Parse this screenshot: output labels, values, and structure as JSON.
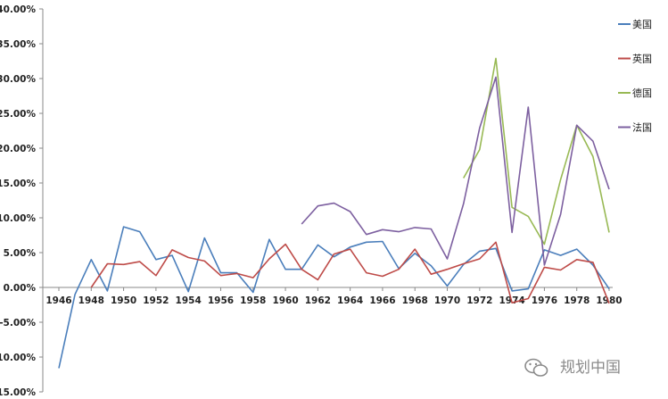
{
  "chart_data": {
    "type": "line",
    "x": [
      1946,
      1947,
      1948,
      1949,
      1950,
      1951,
      1952,
      1953,
      1954,
      1955,
      1956,
      1957,
      1958,
      1959,
      1960,
      1961,
      1962,
      1963,
      1964,
      1965,
      1966,
      1967,
      1968,
      1969,
      1970,
      1971,
      1972,
      1973,
      1974,
      1975,
      1976,
      1977,
      1978,
      1979,
      1980
    ],
    "x_ticks": [
      "1946",
      "1948",
      "1950",
      "1952",
      "1954",
      "1956",
      "1958",
      "1960",
      "1962",
      "1964",
      "1966",
      "1968",
      "1970",
      "1972",
      "1974",
      "1976",
      "1978",
      "1980"
    ],
    "y_ticks": [
      "40.00%",
      "35.00%",
      "30.00%",
      "25.00%",
      "20.00%",
      "15.00%",
      "10.00%",
      "5.00%",
      "0.00%",
      "-5.00%",
      "-10.00%",
      "-15.00%"
    ],
    "ylim": [
      -15,
      40
    ],
    "grid": false,
    "legend_position": "right",
    "series": [
      {
        "name": "美国",
        "color": "#4a7ebb",
        "values": [
          -11.6,
          -1.0,
          4.0,
          -0.5,
          8.7,
          8.0,
          4.0,
          4.6,
          -0.6,
          7.1,
          2.1,
          2.1,
          -0.7,
          6.9,
          2.6,
          2.6,
          6.1,
          4.4,
          5.8,
          6.5,
          6.6,
          2.7,
          4.9,
          3.1,
          0.2,
          3.3,
          5.2,
          5.6,
          -0.5,
          -0.2,
          5.4,
          4.6,
          5.5,
          3.2,
          -0.2
        ]
      },
      {
        "name": "英国",
        "color": "#be4b48",
        "values": [
          null,
          null,
          0.0,
          3.4,
          3.3,
          3.7,
          1.7,
          5.4,
          4.3,
          3.8,
          1.7,
          2.0,
          1.4,
          4.1,
          6.2,
          2.6,
          1.1,
          4.8,
          5.5,
          2.1,
          1.6,
          2.6,
          5.5,
          1.9,
          2.6,
          3.4,
          4.1,
          6.5,
          -2.2,
          -1.6,
          2.9,
          2.5,
          4.0,
          3.6,
          -2.3
        ]
      },
      {
        "name": "德国",
        "color": "#98b954",
        "values": [
          null,
          null,
          null,
          null,
          null,
          null,
          null,
          null,
          null,
          null,
          null,
          null,
          null,
          null,
          null,
          null,
          null,
          null,
          null,
          null,
          null,
          null,
          null,
          null,
          null,
          15.7,
          19.8,
          32.9,
          11.5,
          10.2,
          6.2,
          15.5,
          23.3,
          18.8,
          7.9
        ]
      },
      {
        "name": "法国",
        "color": "#7d60a0",
        "values": [
          null,
          null,
          null,
          null,
          null,
          null,
          null,
          null,
          null,
          null,
          null,
          null,
          null,
          null,
          null,
          9.1,
          11.7,
          12.1,
          10.9,
          7.6,
          8.3,
          8.0,
          8.6,
          8.4,
          4.1,
          12.0,
          22.9,
          30.2,
          7.9,
          25.9,
          3.2,
          10.5,
          23.3,
          21.0,
          14.1
        ]
      }
    ]
  },
  "watermark": {
    "text": "规划中国",
    "icon": "wechat-icon"
  }
}
